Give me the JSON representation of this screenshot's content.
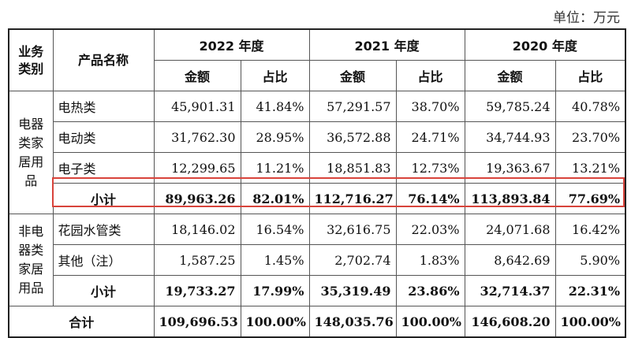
{
  "unit_label": "单位：万元",
  "header": {
    "col_category": "业务类别",
    "col_product": "产品名称",
    "years": [
      "2022 年度",
      "2021 年度",
      "2020 年度"
    ],
    "amount": "金额",
    "ratio": "占比"
  },
  "groups": [
    {
      "category": "电器类家居用品",
      "rows": [
        {
          "name": "电热类",
          "v": [
            "45,901.31",
            "41.84%",
            "57,291.57",
            "38.70%",
            "59,785.24",
            "40.78%"
          ]
        },
        {
          "name": "电动类",
          "v": [
            "31,762.30",
            "28.95%",
            "36,572.88",
            "24.71%",
            "34,744.93",
            "23.70%"
          ]
        },
        {
          "name": "电子类",
          "v": [
            "12,299.65",
            "11.21%",
            "18,851.83",
            "12.73%",
            "19,363.67",
            "13.21%"
          ]
        }
      ],
      "subtotal": {
        "name": "小计",
        "v": [
          "89,963.26",
          "82.01%",
          "112,716.27",
          "76.14%",
          "113,893.84",
          "77.69%"
        ]
      }
    },
    {
      "category": "非电器类家居用品",
      "rows": [
        {
          "name": "花园水管类",
          "v": [
            "18,146.02",
            "16.54%",
            "32,616.75",
            "22.03%",
            "24,071.68",
            "16.42%"
          ]
        },
        {
          "name": "其他（注）",
          "v": [
            "1,587.25",
            "1.45%",
            "2,702.74",
            "1.83%",
            "8,642.69",
            "5.90%"
          ]
        }
      ],
      "subtotal": {
        "name": "小计",
        "v": [
          "19,733.27",
          "17.99%",
          "35,319.49",
          "23.86%",
          "32,714.37",
          "22.31%"
        ]
      }
    }
  ],
  "total": {
    "name": "合计",
    "v": [
      "109,696.53",
      "100.00%",
      "148,035.76",
      "100.00%",
      "146,608.20",
      "100.00%"
    ]
  }
}
